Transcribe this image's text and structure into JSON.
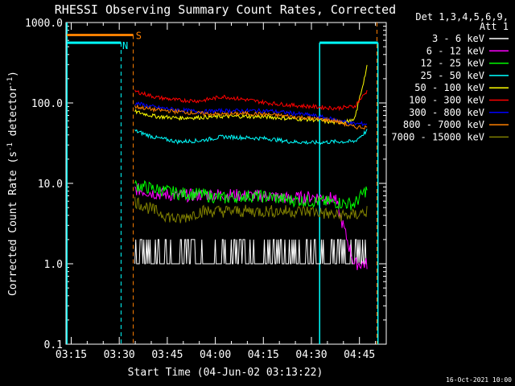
{
  "chart_data": {
    "type": "line",
    "title": "RHESSI Observing Summary Count Rates, Corrected",
    "xlabel": "Start Time (04-Jun-02 03:13:22)",
    "ylabel": "Corrected Count Rate (s",
    "ylabel_sup": "-1",
    "ylabel_mid": " detector",
    "ylabel_sup2": "-1",
    "ylabel_end": ")",
    "x_ticks": [
      "03:15",
      "03:30",
      "03:45",
      "04:00",
      "04:15",
      "04:30",
      "04:45"
    ],
    "x_tick_minutes": [
      1.63,
      16.63,
      31.63,
      46.63,
      61.63,
      76.63,
      91.63
    ],
    "xlim_minutes": [
      0,
      100
    ],
    "y_scale": "log",
    "ylim": [
      0.1,
      1000
    ],
    "y_ticks": [
      "0.1",
      "1.0",
      "10.0",
      "100.0",
      "1000.0"
    ],
    "y_tick_values": [
      0.1,
      1,
      10,
      100,
      1000
    ],
    "legend_header": [
      "Det 1,3,4,5,6,9,",
      "Att 1"
    ],
    "series": [
      {
        "name": "3 - 6 keV",
        "color": "#ffffff",
        "values": [
          2.0,
          1.5,
          1.0,
          1.8,
          1.0,
          1.0,
          1.0,
          2.0,
          1.5,
          1.0,
          1.0,
          1.0
        ]
      },
      {
        "name": "6 - 12 keV",
        "color": "#ff00ff",
        "values": [
          8.5,
          7.5,
          7.0,
          7.2,
          7.3,
          7.0,
          7.0,
          6.5,
          6.8,
          6.5,
          1.0,
          1.0
        ]
      },
      {
        "name": "12 - 25 keV",
        "color": "#00ff00",
        "values": [
          9.5,
          8.5,
          7.5,
          7.3,
          6.5,
          7.0,
          6.8,
          6.2,
          6.0,
          5.8,
          5.5,
          8.5
        ]
      },
      {
        "name": "25 - 50 keV",
        "color": "#00ffff",
        "values": [
          45,
          37,
          33,
          34,
          38,
          37,
          36,
          33,
          32,
          33,
          33,
          45
        ]
      },
      {
        "name": "50 - 100 keV",
        "color": "#ffff00",
        "values": [
          78,
          68,
          65,
          66,
          68,
          68,
          67,
          64,
          62,
          57,
          60,
          280
        ]
      },
      {
        "name": "100 - 300 keV",
        "color": "#ff0000",
        "values": [
          140,
          118,
          108,
          106,
          120,
          110,
          100,
          94,
          90,
          86,
          90,
          140
        ]
      },
      {
        "name": "300 - 800 keV",
        "color": "#0000ff",
        "values": [
          100,
          88,
          82,
          78,
          80,
          80,
          80,
          75,
          70,
          62,
          55,
          55
        ]
      },
      {
        "name": "800 - 7000 keV",
        "color": "#ff8000",
        "values": [
          90,
          82,
          78,
          74,
          72,
          74,
          72,
          68,
          64,
          60,
          50,
          50
        ]
      },
      {
        "name": "7000 - 15000 keV",
        "color": "#808000",
        "values": [
          6.0,
          4.5,
          3.5,
          4.5,
          4.5,
          4.5,
          4.5,
          4.5,
          4.5,
          4.0,
          4.0,
          4.5
        ]
      }
    ],
    "series_x_minutes": [
      21.5,
      28,
      35,
      42,
      49,
      56,
      63,
      70,
      77,
      84,
      90,
      94
    ],
    "flags": [
      {
        "label": "S",
        "color": "#ff8000"
      },
      {
        "label": "N",
        "color": "#00ffff"
      }
    ],
    "footer_date": "16-Oct-2021 10:00"
  }
}
